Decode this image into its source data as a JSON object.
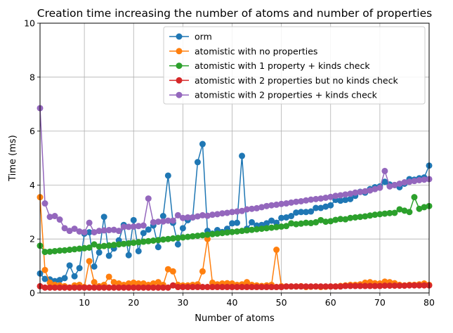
{
  "chart_data": {
    "type": "line",
    "title": "Creation time increasing the number of atoms and number of properties",
    "xlabel": "Number of atoms",
    "ylabel": "Time (ms)",
    "xlim": [
      1,
      80
    ],
    "ylim": [
      0,
      10
    ],
    "xticks": [
      10,
      20,
      30,
      40,
      50,
      60,
      70,
      80
    ],
    "yticks": [
      0,
      2,
      4,
      6,
      8,
      10
    ],
    "grid": true,
    "legend_position": "upper right",
    "x": [
      1,
      2,
      3,
      4,
      5,
      6,
      7,
      8,
      9,
      10,
      11,
      12,
      13,
      14,
      15,
      16,
      17,
      18,
      19,
      20,
      21,
      22,
      23,
      24,
      25,
      26,
      27,
      28,
      29,
      30,
      31,
      32,
      33,
      34,
      35,
      36,
      37,
      38,
      39,
      40,
      41,
      42,
      43,
      44,
      45,
      46,
      47,
      48,
      49,
      50,
      51,
      52,
      53,
      54,
      55,
      56,
      57,
      58,
      59,
      60,
      61,
      62,
      63,
      64,
      65,
      66,
      67,
      68,
      69,
      70,
      71,
      72,
      73,
      74,
      75,
      76,
      77,
      78,
      79,
      80
    ],
    "series": [
      {
        "name": "orm",
        "color": "#1f77b4",
        "values": [
          0.72,
          0.52,
          0.5,
          0.44,
          0.48,
          0.55,
          1.02,
          0.62,
          0.92,
          2.2,
          2.25,
          0.98,
          1.5,
          2.82,
          1.38,
          1.65,
          1.95,
          2.52,
          1.4,
          2.7,
          1.55,
          2.22,
          2.35,
          2.5,
          1.7,
          2.85,
          4.35,
          2.6,
          1.8,
          2.4,
          2.7,
          2.8,
          4.85,
          5.52,
          2.3,
          2.2,
          2.33,
          2.26,
          2.38,
          2.58,
          2.6,
          5.08,
          2.38,
          2.62,
          2.5,
          2.52,
          2.58,
          2.68,
          2.6,
          2.78,
          2.8,
          2.85,
          2.98,
          3.0,
          3.0,
          3.02,
          3.15,
          3.15,
          3.2,
          3.25,
          3.45,
          3.42,
          3.45,
          3.48,
          3.6,
          3.75,
          3.72,
          3.85,
          3.92,
          3.95,
          4.12,
          4.02,
          4.0,
          3.92,
          4.05,
          4.22,
          4.2,
          4.25,
          4.28,
          4.72
        ]
      },
      {
        "name": "atomistic with no properties",
        "color": "#ff7f0e",
        "values": [
          3.55,
          0.85,
          0.38,
          0.3,
          0.28,
          0.25,
          0.2,
          0.28,
          0.3,
          0.22,
          1.18,
          0.4,
          0.25,
          0.3,
          0.6,
          0.4,
          0.35,
          0.3,
          0.35,
          0.38,
          0.35,
          0.35,
          0.3,
          0.35,
          0.4,
          0.3,
          0.88,
          0.8,
          0.3,
          0.28,
          0.28,
          0.3,
          0.32,
          0.8,
          2.0,
          0.38,
          0.32,
          0.35,
          0.36,
          0.35,
          0.3,
          0.32,
          0.4,
          0.3,
          0.28,
          0.26,
          0.28,
          0.3,
          1.6,
          0.25,
          0.24,
          0.24,
          0.24,
          0.25,
          0.22,
          0.23,
          0.24,
          0.22,
          0.23,
          0.24,
          0.24,
          0.26,
          0.28,
          0.3,
          0.3,
          0.32,
          0.38,
          0.4,
          0.36,
          0.35,
          0.42,
          0.4,
          0.36,
          0.3,
          0.28,
          0.3,
          0.3,
          0.32,
          0.35,
          0.3
        ]
      },
      {
        "name": "atomistic with 1 property + kinds check",
        "color": "#2ca02c",
        "values": [
          1.75,
          1.52,
          1.53,
          1.55,
          1.57,
          1.58,
          1.6,
          1.62,
          1.64,
          1.66,
          1.68,
          1.8,
          1.72,
          1.74,
          1.76,
          1.78,
          1.8,
          1.82,
          1.84,
          1.86,
          1.88,
          1.9,
          1.92,
          1.94,
          1.96,
          1.98,
          2.0,
          2.02,
          2.04,
          2.06,
          2.08,
          2.1,
          2.12,
          2.14,
          2.16,
          2.18,
          2.2,
          2.22,
          2.24,
          2.26,
          2.28,
          2.3,
          2.32,
          2.34,
          2.36,
          2.38,
          2.4,
          2.42,
          2.44,
          2.46,
          2.48,
          2.58,
          2.55,
          2.57,
          2.6,
          2.59,
          2.62,
          2.7,
          2.64,
          2.66,
          2.71,
          2.74,
          2.73,
          2.78,
          2.8,
          2.82,
          2.84,
          2.87,
          2.9,
          2.92,
          2.94,
          2.96,
          2.97,
          3.1,
          3.05,
          3.0,
          3.55,
          3.12,
          3.18,
          3.22
        ]
      },
      {
        "name": "atomistic with 2 properties but no kinds check",
        "color": "#d62728",
        "values": [
          0.25,
          0.2,
          0.2,
          0.2,
          0.2,
          0.2,
          0.2,
          0.2,
          0.2,
          0.2,
          0.2,
          0.2,
          0.2,
          0.2,
          0.2,
          0.2,
          0.2,
          0.2,
          0.2,
          0.2,
          0.2,
          0.2,
          0.2,
          0.2,
          0.2,
          0.2,
          0.2,
          0.28,
          0.22,
          0.22,
          0.22,
          0.22,
          0.22,
          0.22,
          0.22,
          0.22,
          0.22,
          0.22,
          0.22,
          0.22,
          0.22,
          0.22,
          0.22,
          0.22,
          0.22,
          0.22,
          0.22,
          0.22,
          0.22,
          0.22,
          0.24,
          0.24,
          0.24,
          0.24,
          0.24,
          0.24,
          0.24,
          0.24,
          0.24,
          0.24,
          0.24,
          0.24,
          0.26,
          0.26,
          0.26,
          0.26,
          0.26,
          0.26,
          0.26,
          0.26,
          0.27,
          0.27,
          0.27,
          0.27,
          0.27,
          0.28,
          0.28,
          0.28,
          0.28,
          0.28
        ]
      },
      {
        "name": "atomistic with 2 properties + kinds check",
        "color": "#9467bd",
        "values": [
          6.85,
          3.32,
          2.82,
          2.85,
          2.72,
          2.4,
          2.3,
          2.38,
          2.28,
          2.25,
          2.6,
          2.25,
          2.3,
          2.32,
          2.33,
          2.34,
          2.3,
          2.45,
          2.45,
          2.46,
          2.48,
          2.5,
          3.5,
          2.62,
          2.64,
          2.65,
          2.68,
          2.68,
          2.88,
          2.78,
          2.8,
          2.8,
          2.84,
          2.88,
          2.86,
          2.9,
          2.92,
          2.95,
          2.97,
          3.0,
          3.02,
          3.04,
          3.1,
          3.12,
          3.14,
          3.18,
          3.22,
          3.25,
          3.27,
          3.3,
          3.32,
          3.35,
          3.38,
          3.4,
          3.43,
          3.46,
          3.48,
          3.5,
          3.53,
          3.56,
          3.6,
          3.62,
          3.65,
          3.68,
          3.72,
          3.74,
          3.77,
          3.8,
          3.85,
          3.9,
          4.52,
          3.95,
          4.0,
          4.05,
          4.1,
          4.12,
          4.15,
          4.18,
          4.2,
          4.22
        ]
      }
    ]
  }
}
